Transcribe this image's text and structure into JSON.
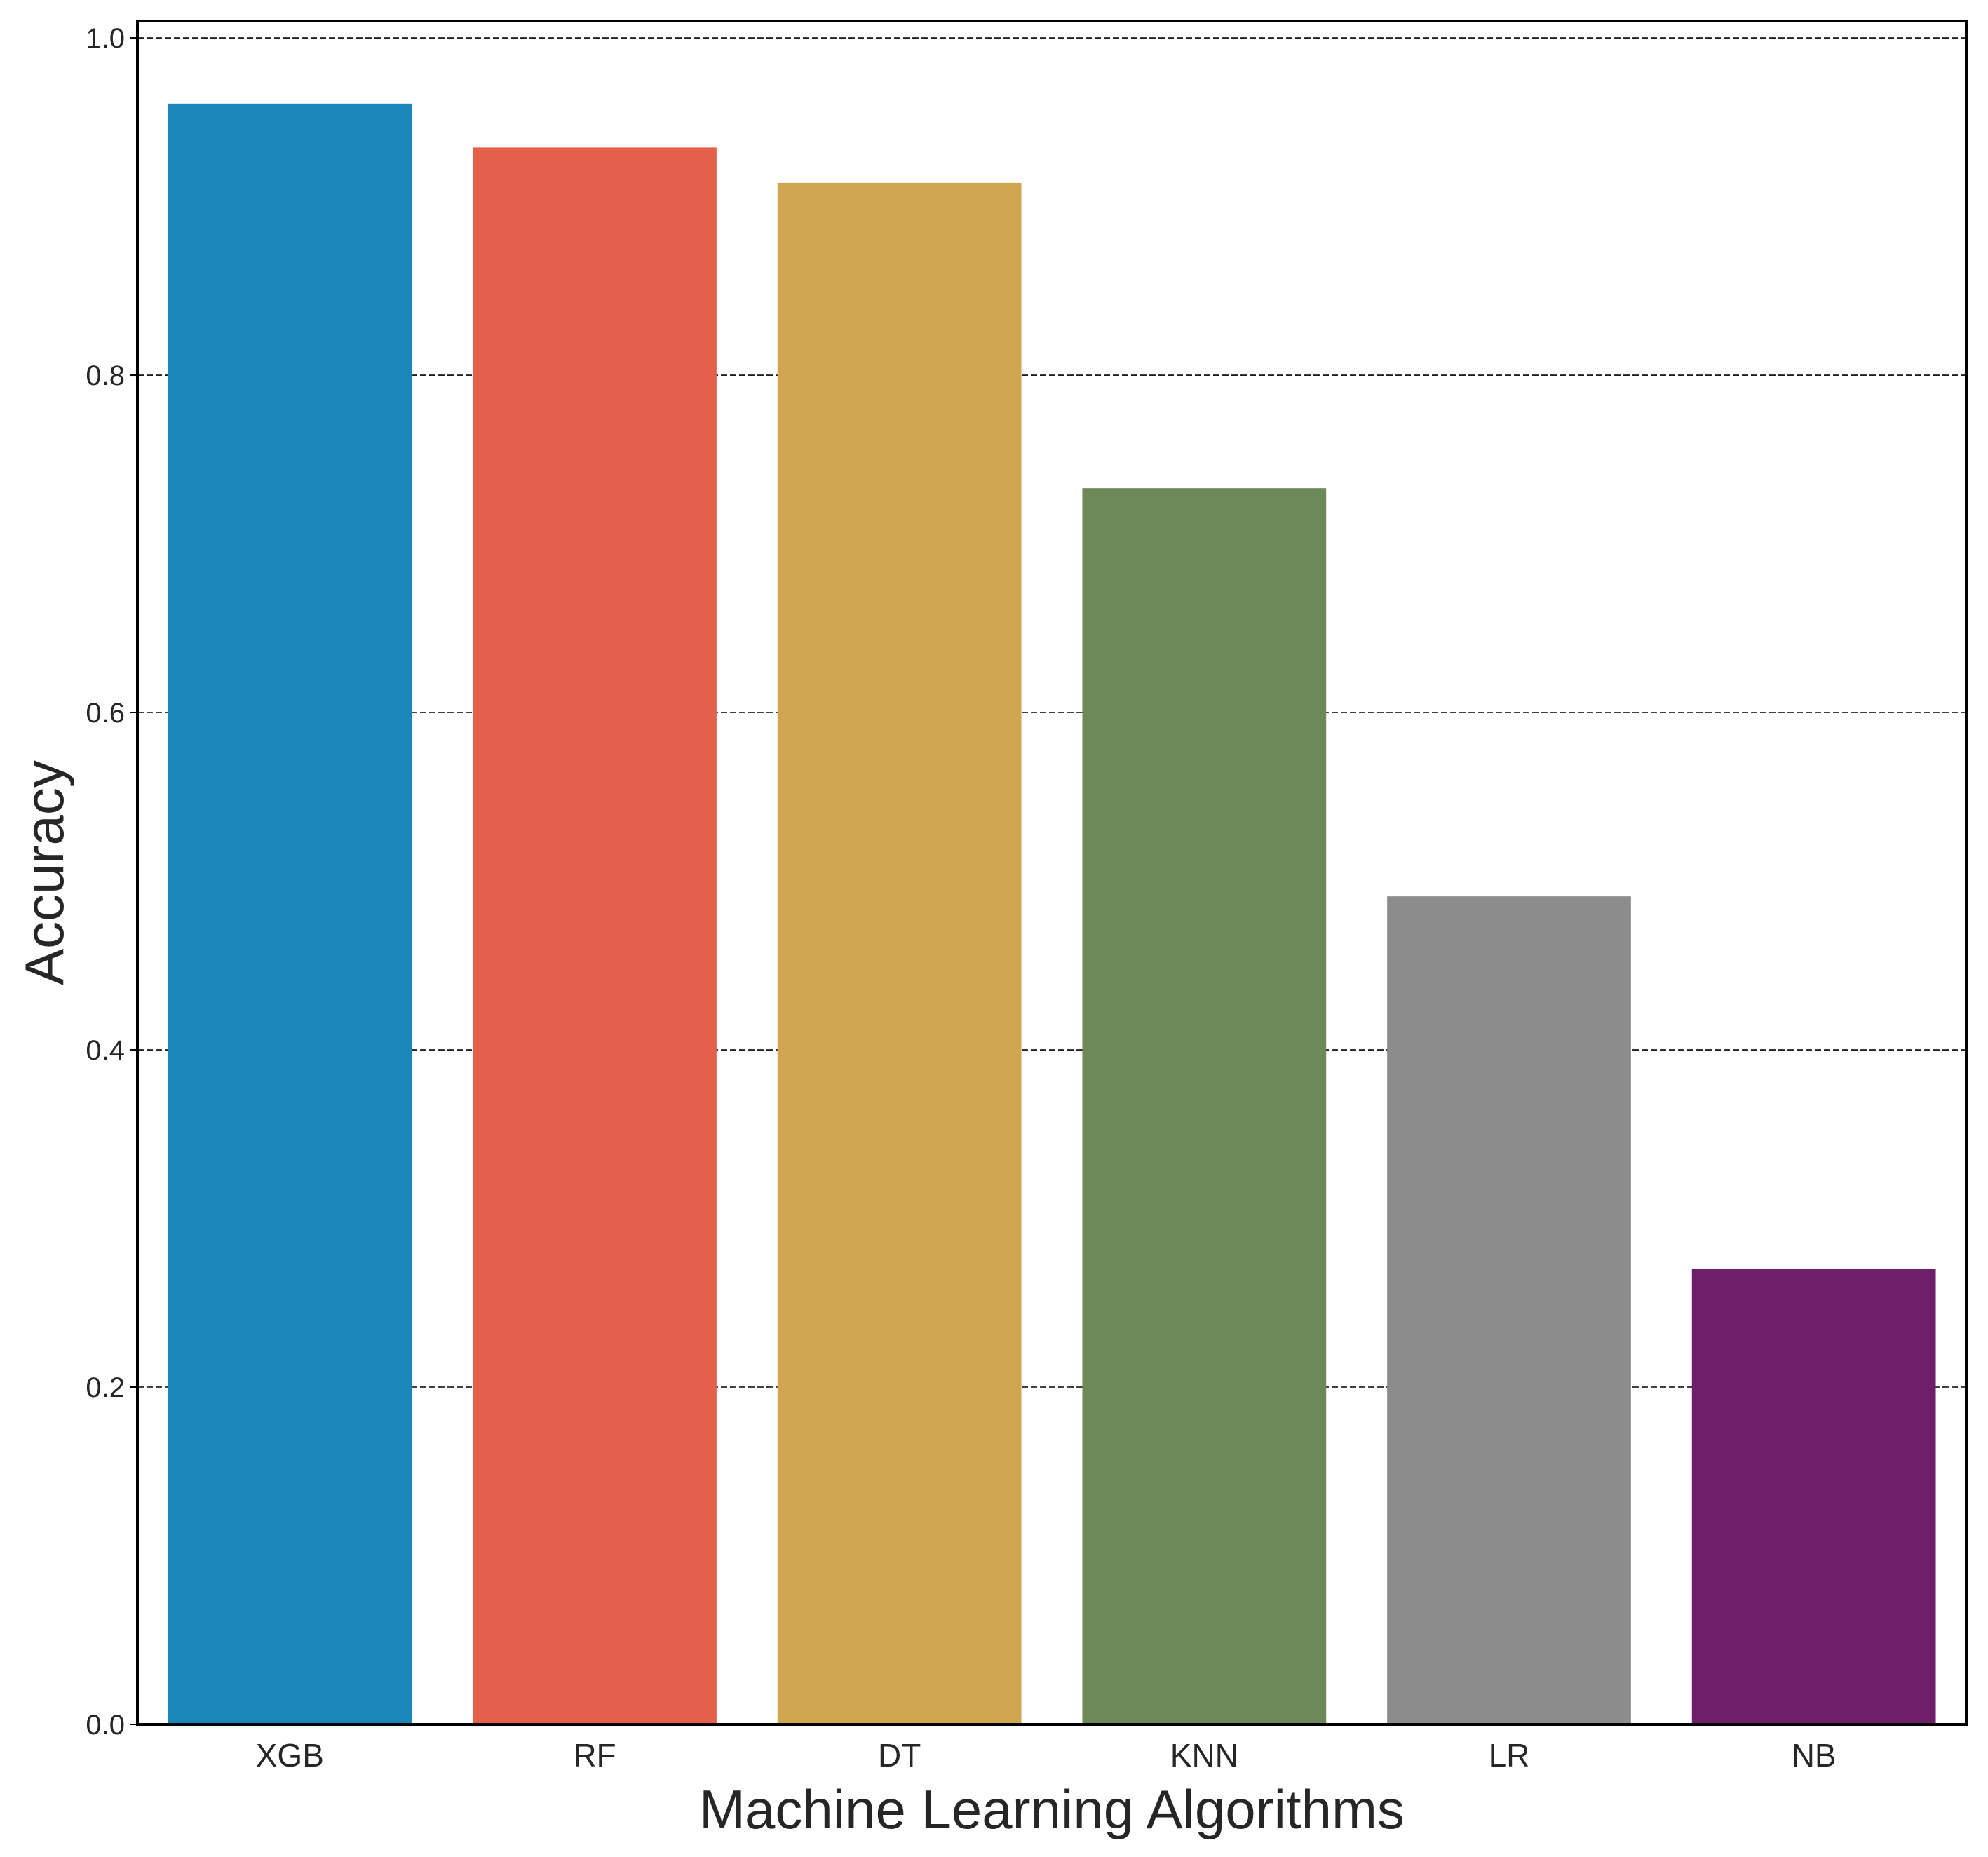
{
  "chart_data": {
    "type": "bar",
    "title": "",
    "xlabel": "Machine Learning Algorithms",
    "ylabel": "Accuracy",
    "categories": [
      "XGB",
      "RF",
      "DT",
      "KNN",
      "LR",
      "NB"
    ],
    "values": [
      0.961,
      0.935,
      0.914,
      0.733,
      0.491,
      0.27
    ],
    "colors": [
      "#1b86b9",
      "#e4604a",
      "#cfa64f",
      "#6e8958",
      "#8c8c8c",
      "#6e1e6a"
    ],
    "ylim": [
      0,
      1.01
    ],
    "yticks": [
      0.0,
      0.2,
      0.4,
      0.6,
      0.8,
      1.0
    ],
    "ytick_labels": [
      "0.0",
      "0.2",
      "0.4",
      "0.6",
      "0.8",
      "1.0"
    ],
    "grid": "horizontal-dashed",
    "legend": "none"
  }
}
